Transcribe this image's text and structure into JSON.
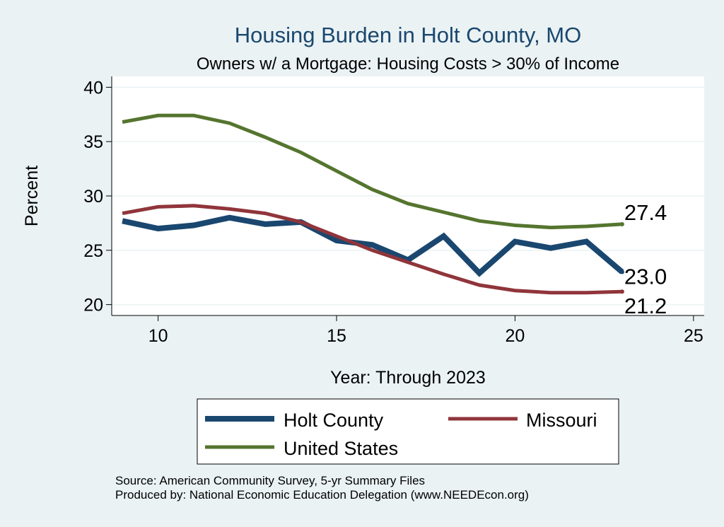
{
  "chart_data": {
    "type": "line",
    "title": "Housing Burden in Holt County, MO",
    "subtitle": "Owners w/ a Mortgage: Housing Costs > 30% of Income",
    "xlabel": "Year: Through 2023",
    "ylabel": "Percent",
    "xlim": [
      8.7,
      25.3
    ],
    "ylim": [
      19.0,
      41.0
    ],
    "x_ticks": [
      10,
      15,
      20,
      25
    ],
    "y_ticks": [
      20,
      25,
      30,
      35,
      40
    ],
    "grid": true,
    "legend_position": "bottom",
    "x": [
      9,
      10,
      11,
      12,
      13,
      14,
      15,
      16,
      17,
      18,
      19,
      20,
      21,
      22,
      23
    ],
    "series": [
      {
        "name": "Holt County",
        "color": "#1a476f",
        "values": [
          27.7,
          27.0,
          27.3,
          28.0,
          27.4,
          27.6,
          25.9,
          25.5,
          24.1,
          26.3,
          22.9,
          25.8,
          25.2,
          25.8,
          23.0
        ],
        "end_label": "23.0"
      },
      {
        "name": "Missouri",
        "color": "#90353b",
        "values": [
          28.4,
          29.0,
          29.1,
          28.8,
          28.4,
          27.6,
          26.3,
          25.0,
          23.9,
          22.8,
          21.8,
          21.3,
          21.1,
          21.1,
          21.2
        ],
        "end_label": "21.2"
      },
      {
        "name": "United States",
        "color": "#55752f",
        "values": [
          36.8,
          37.4,
          37.4,
          36.7,
          35.4,
          34.0,
          32.3,
          30.6,
          29.3,
          28.5,
          27.7,
          27.3,
          27.1,
          27.2,
          27.4
        ],
        "end_label": "27.4"
      }
    ]
  },
  "notes": {
    "source": "Source: American Community Survey, 5-yr Summary Files",
    "produced_by": "Produced by: National Economic Education Delegation (www.NEEDEcon.org)"
  }
}
